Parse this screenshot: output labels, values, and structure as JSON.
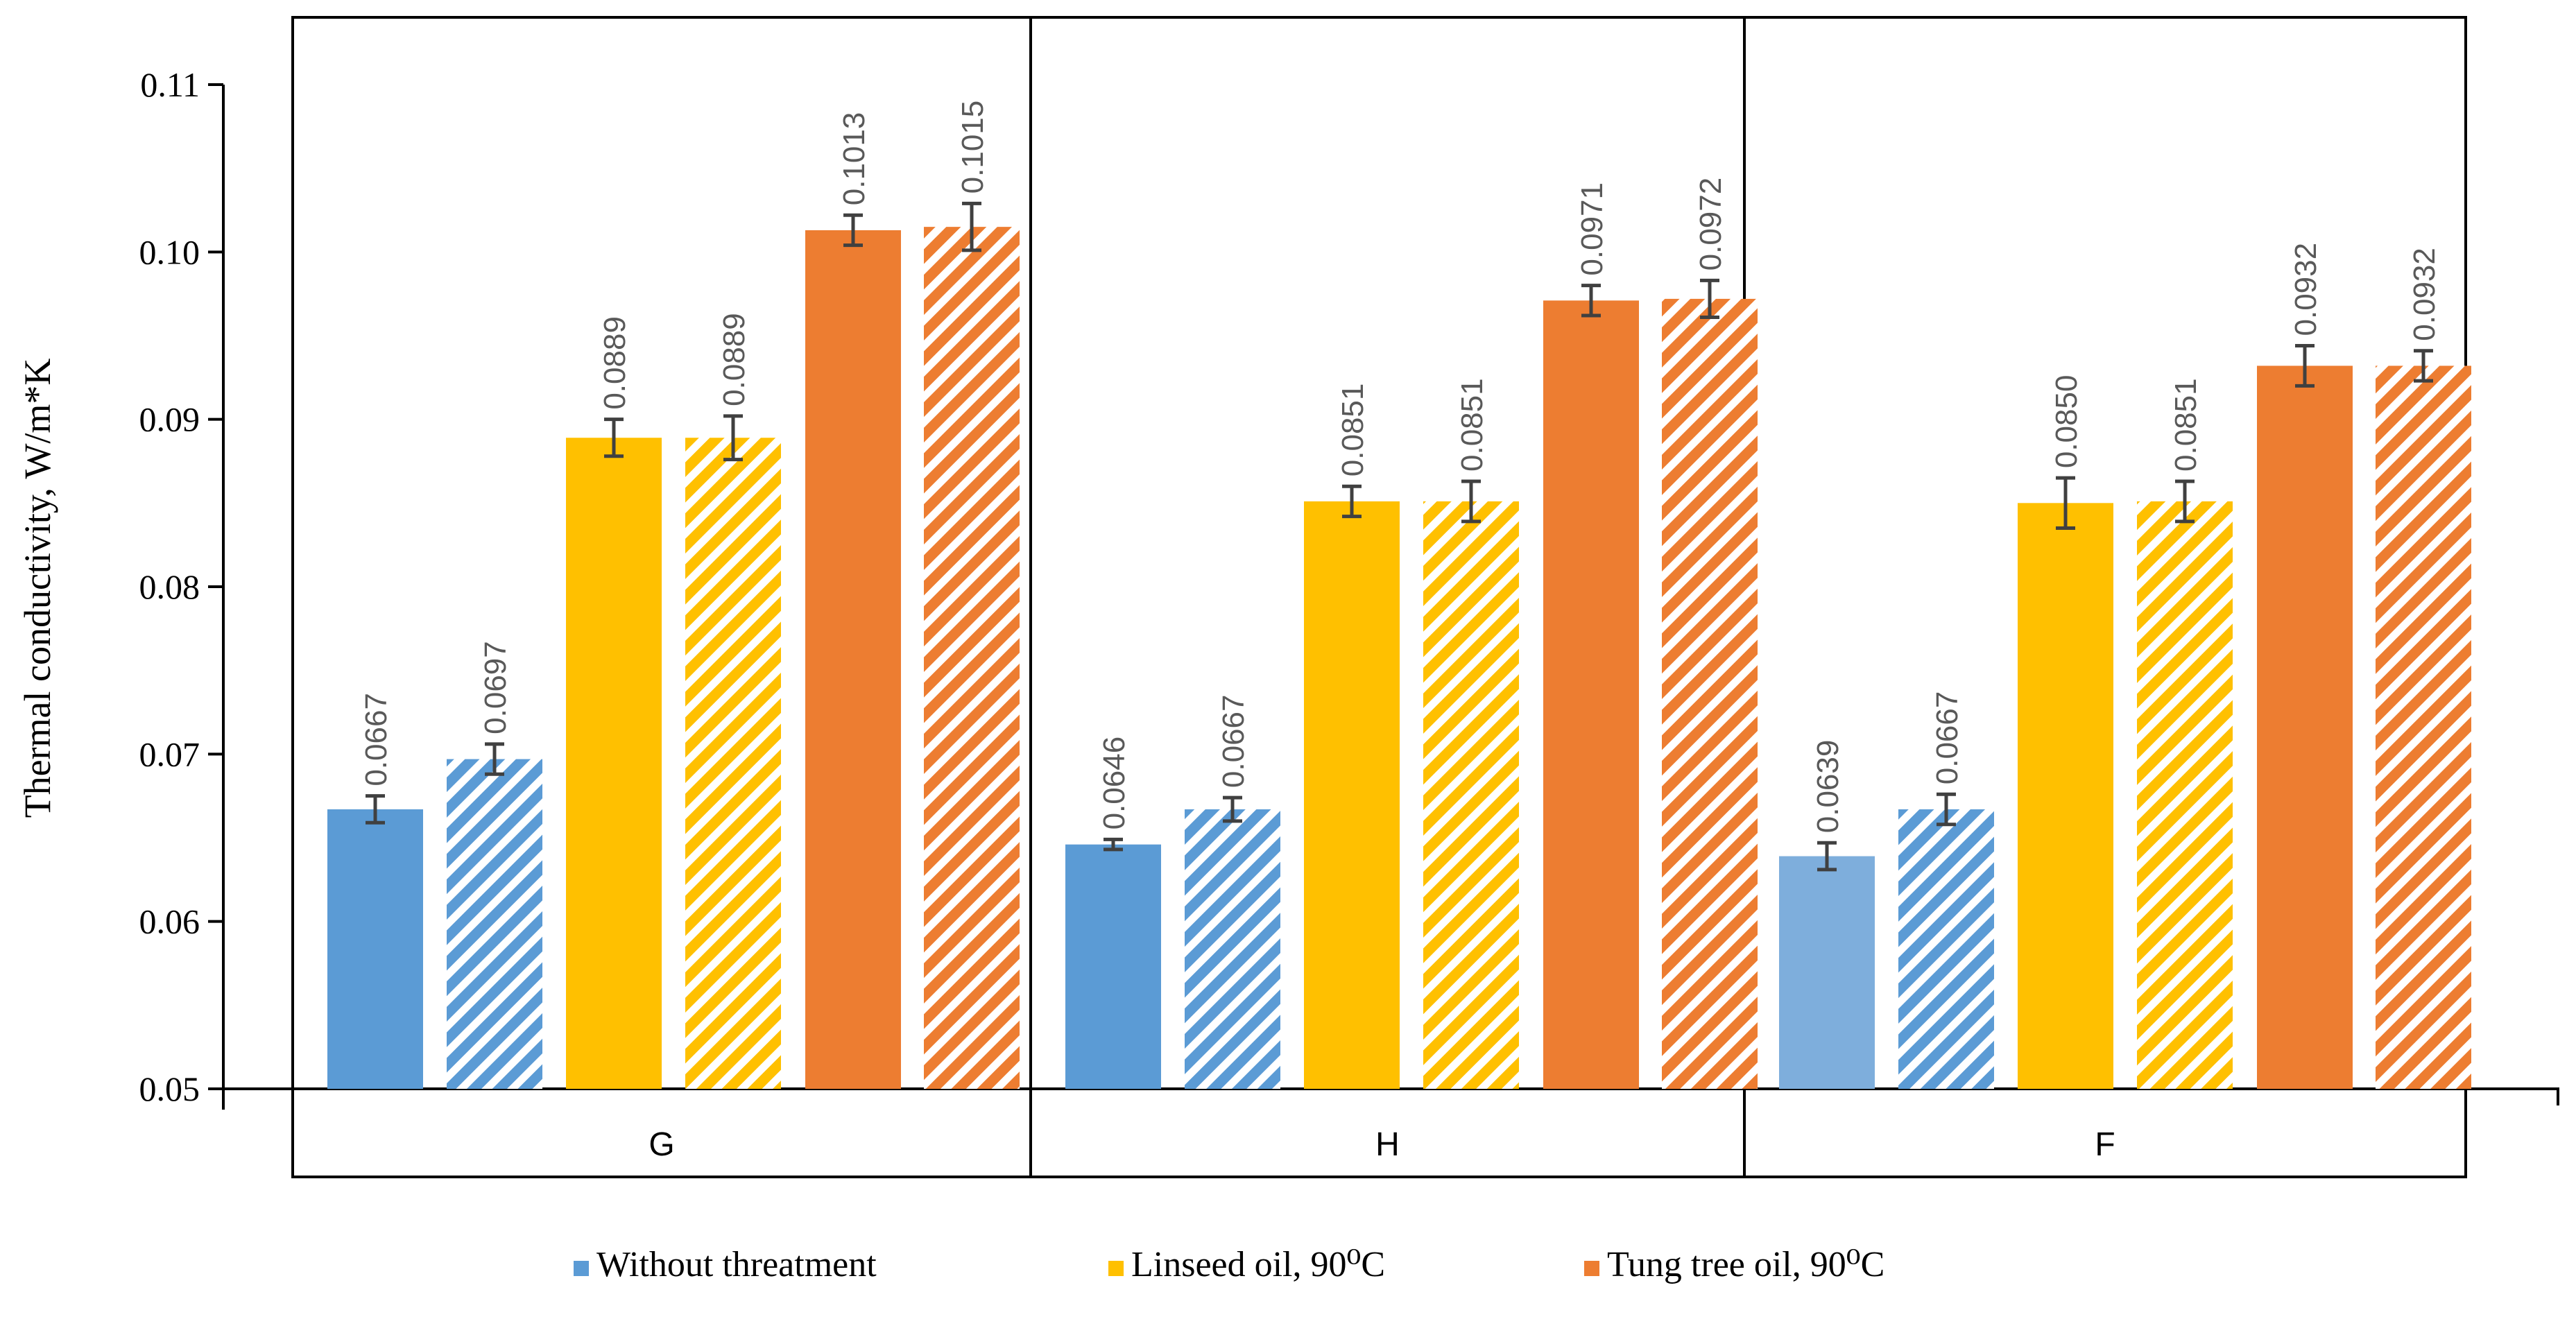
{
  "chart_data": {
    "type": "bar",
    "title": "",
    "xlabel": "",
    "ylabel": "Thermal conductivity, W/m*K",
    "ylim": [
      0.05,
      0.11
    ],
    "yticks": [
      "0.05",
      "0.06",
      "0.07",
      "0.08",
      "0.09",
      "0.10",
      "0.11"
    ],
    "categories": [
      "G",
      "H",
      "F"
    ],
    "bars_per_category": [
      {
        "treatment": "Without threatment",
        "hatched": false
      },
      {
        "treatment": "Without threatment",
        "hatched": true
      },
      {
        "treatment": "Linseed oil, 90⁰C",
        "hatched": false
      },
      {
        "treatment": "Linseed oil, 90⁰C",
        "hatched": true
      },
      {
        "treatment": "Tung tree oil, 90⁰C",
        "hatched": false
      },
      {
        "treatment": "Tung tree oil, 90⁰C",
        "hatched": true
      }
    ],
    "groups": [
      {
        "category": "G",
        "values": [
          0.0667,
          0.0697,
          0.0889,
          0.0889,
          0.1013,
          0.1015
        ],
        "labels": [
          "0.0667",
          "0.0697",
          "0.0889",
          "0.0889",
          "0.1013",
          "0.1015"
        ],
        "errors": [
          0.0008,
          0.0009,
          0.0011,
          0.0013,
          0.0009,
          0.0014
        ]
      },
      {
        "category": "H",
        "values": [
          0.0646,
          0.0667,
          0.0851,
          0.0851,
          0.0971,
          0.0972
        ],
        "labels": [
          "0.0646",
          "0.0667",
          "0.0851",
          "0.0851",
          "0.0971",
          "0.0972"
        ],
        "errors": [
          0.0003,
          0.0007,
          0.0009,
          0.0012,
          0.0009,
          0.0011
        ]
      },
      {
        "category": "F",
        "values": [
          0.0639,
          0.0667,
          0.085,
          0.0851,
          0.0932,
          0.0932
        ],
        "labels": [
          "0.0639",
          "0.0667",
          "0.0850",
          "0.0851",
          "0.0932",
          "0.0932"
        ],
        "errors": [
          0.0008,
          0.0009,
          0.0015,
          0.0012,
          0.0012,
          0.0009
        ]
      }
    ],
    "series_colors": {
      "Without threatment": "#5B9BD5",
      "Without threatment F": "#7EAEDC",
      "Linseed oil, 90⁰C": "#FFC000",
      "Tung tree oil, 90⁰C": "#ED7D31"
    },
    "error_bar_color": "#404040",
    "legend": {
      "position": "bottom",
      "entries": [
        {
          "label": "Without threatment",
          "color": "#5B9BD5"
        },
        {
          "label": "Linseed oil, 90⁰C",
          "color": "#FFC000"
        },
        {
          "label": "Tung tree oil, 90⁰C",
          "color": "#ED7D31"
        }
      ]
    }
  }
}
